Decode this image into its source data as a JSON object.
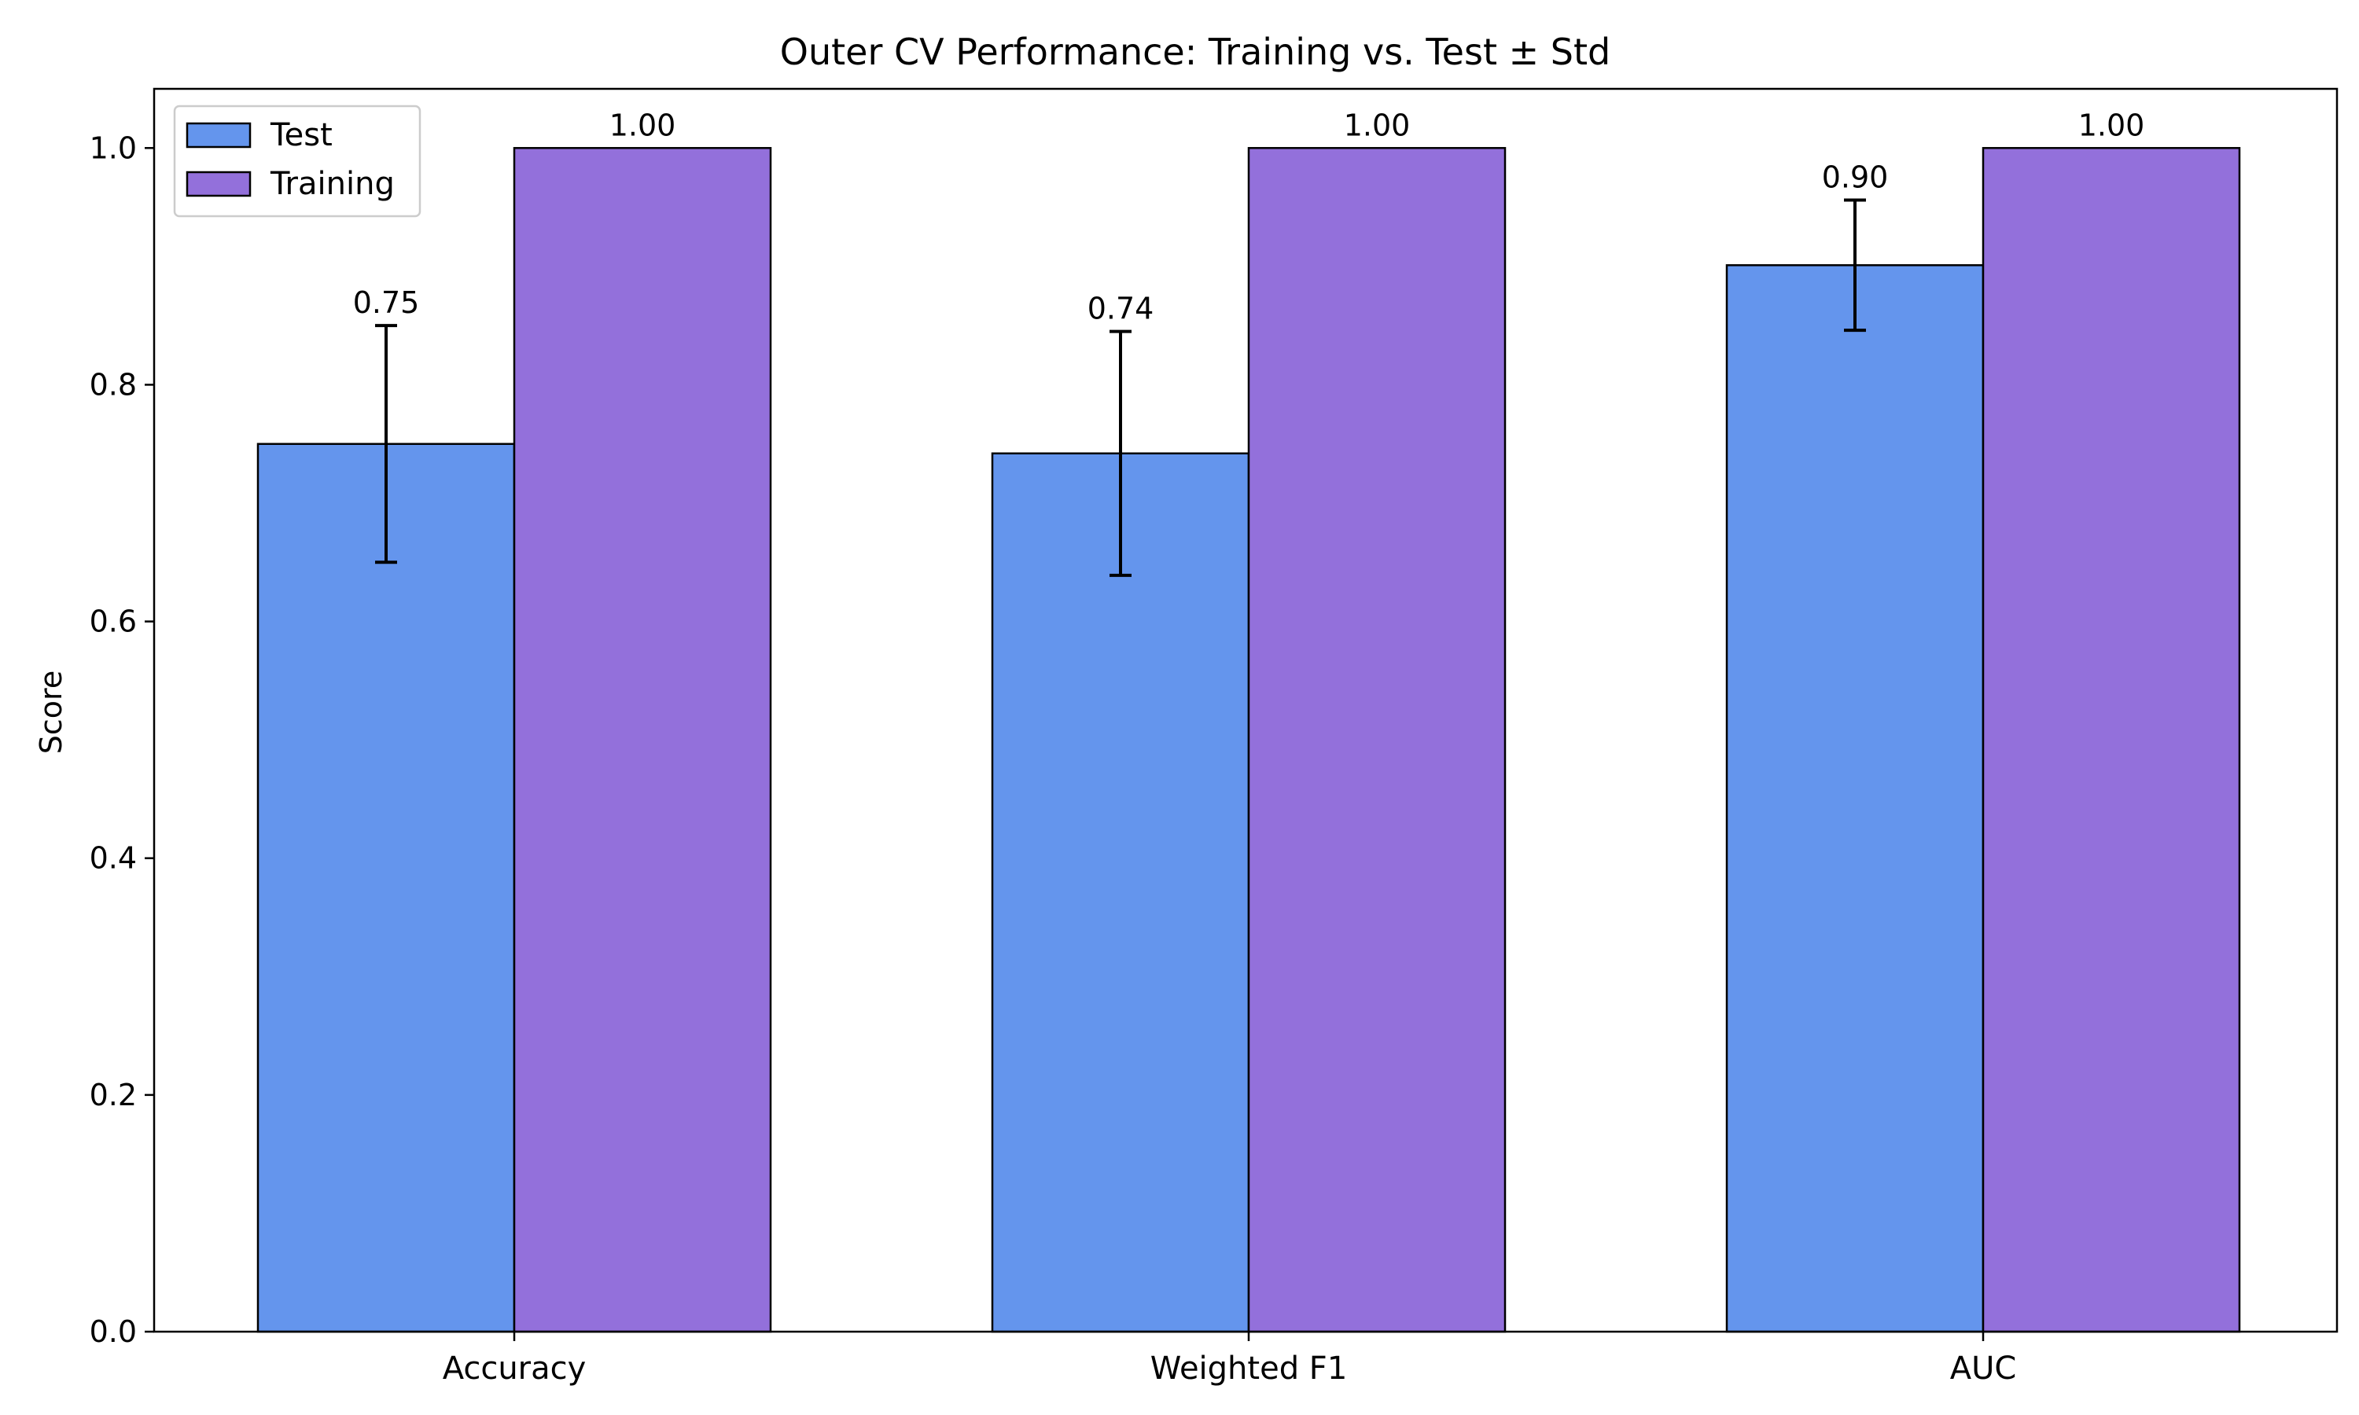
{
  "chart_data": {
    "type": "bar",
    "title": "Outer CV Performance: Training vs. Test ± Std",
    "xlabel": "",
    "ylabel": "Score",
    "ylim": [
      0,
      1.05
    ],
    "yticks": [
      0.0,
      0.2,
      0.4,
      0.6,
      0.8,
      1.0
    ],
    "ytick_labels": [
      "0.0",
      "0.2",
      "0.4",
      "0.6",
      "0.8",
      "1.0"
    ],
    "categories": [
      "Accuracy",
      "Weighted F1",
      "AUC"
    ],
    "series": [
      {
        "name": "Test",
        "color": "#6495ED",
        "values": [
          0.75,
          0.742,
          0.901
        ],
        "errors": [
          0.1,
          0.103,
          0.055
        ],
        "value_labels": [
          "0.75",
          "0.74",
          "0.90"
        ]
      },
      {
        "name": "Training",
        "color": "#9370DB",
        "values": [
          1.0,
          1.0,
          1.0
        ],
        "errors": [
          0.0,
          0.0,
          0.0
        ],
        "value_labels": [
          "1.00",
          "1.00",
          "1.00"
        ]
      }
    ],
    "legend": {
      "position": "upper-left"
    },
    "grid": false
  }
}
